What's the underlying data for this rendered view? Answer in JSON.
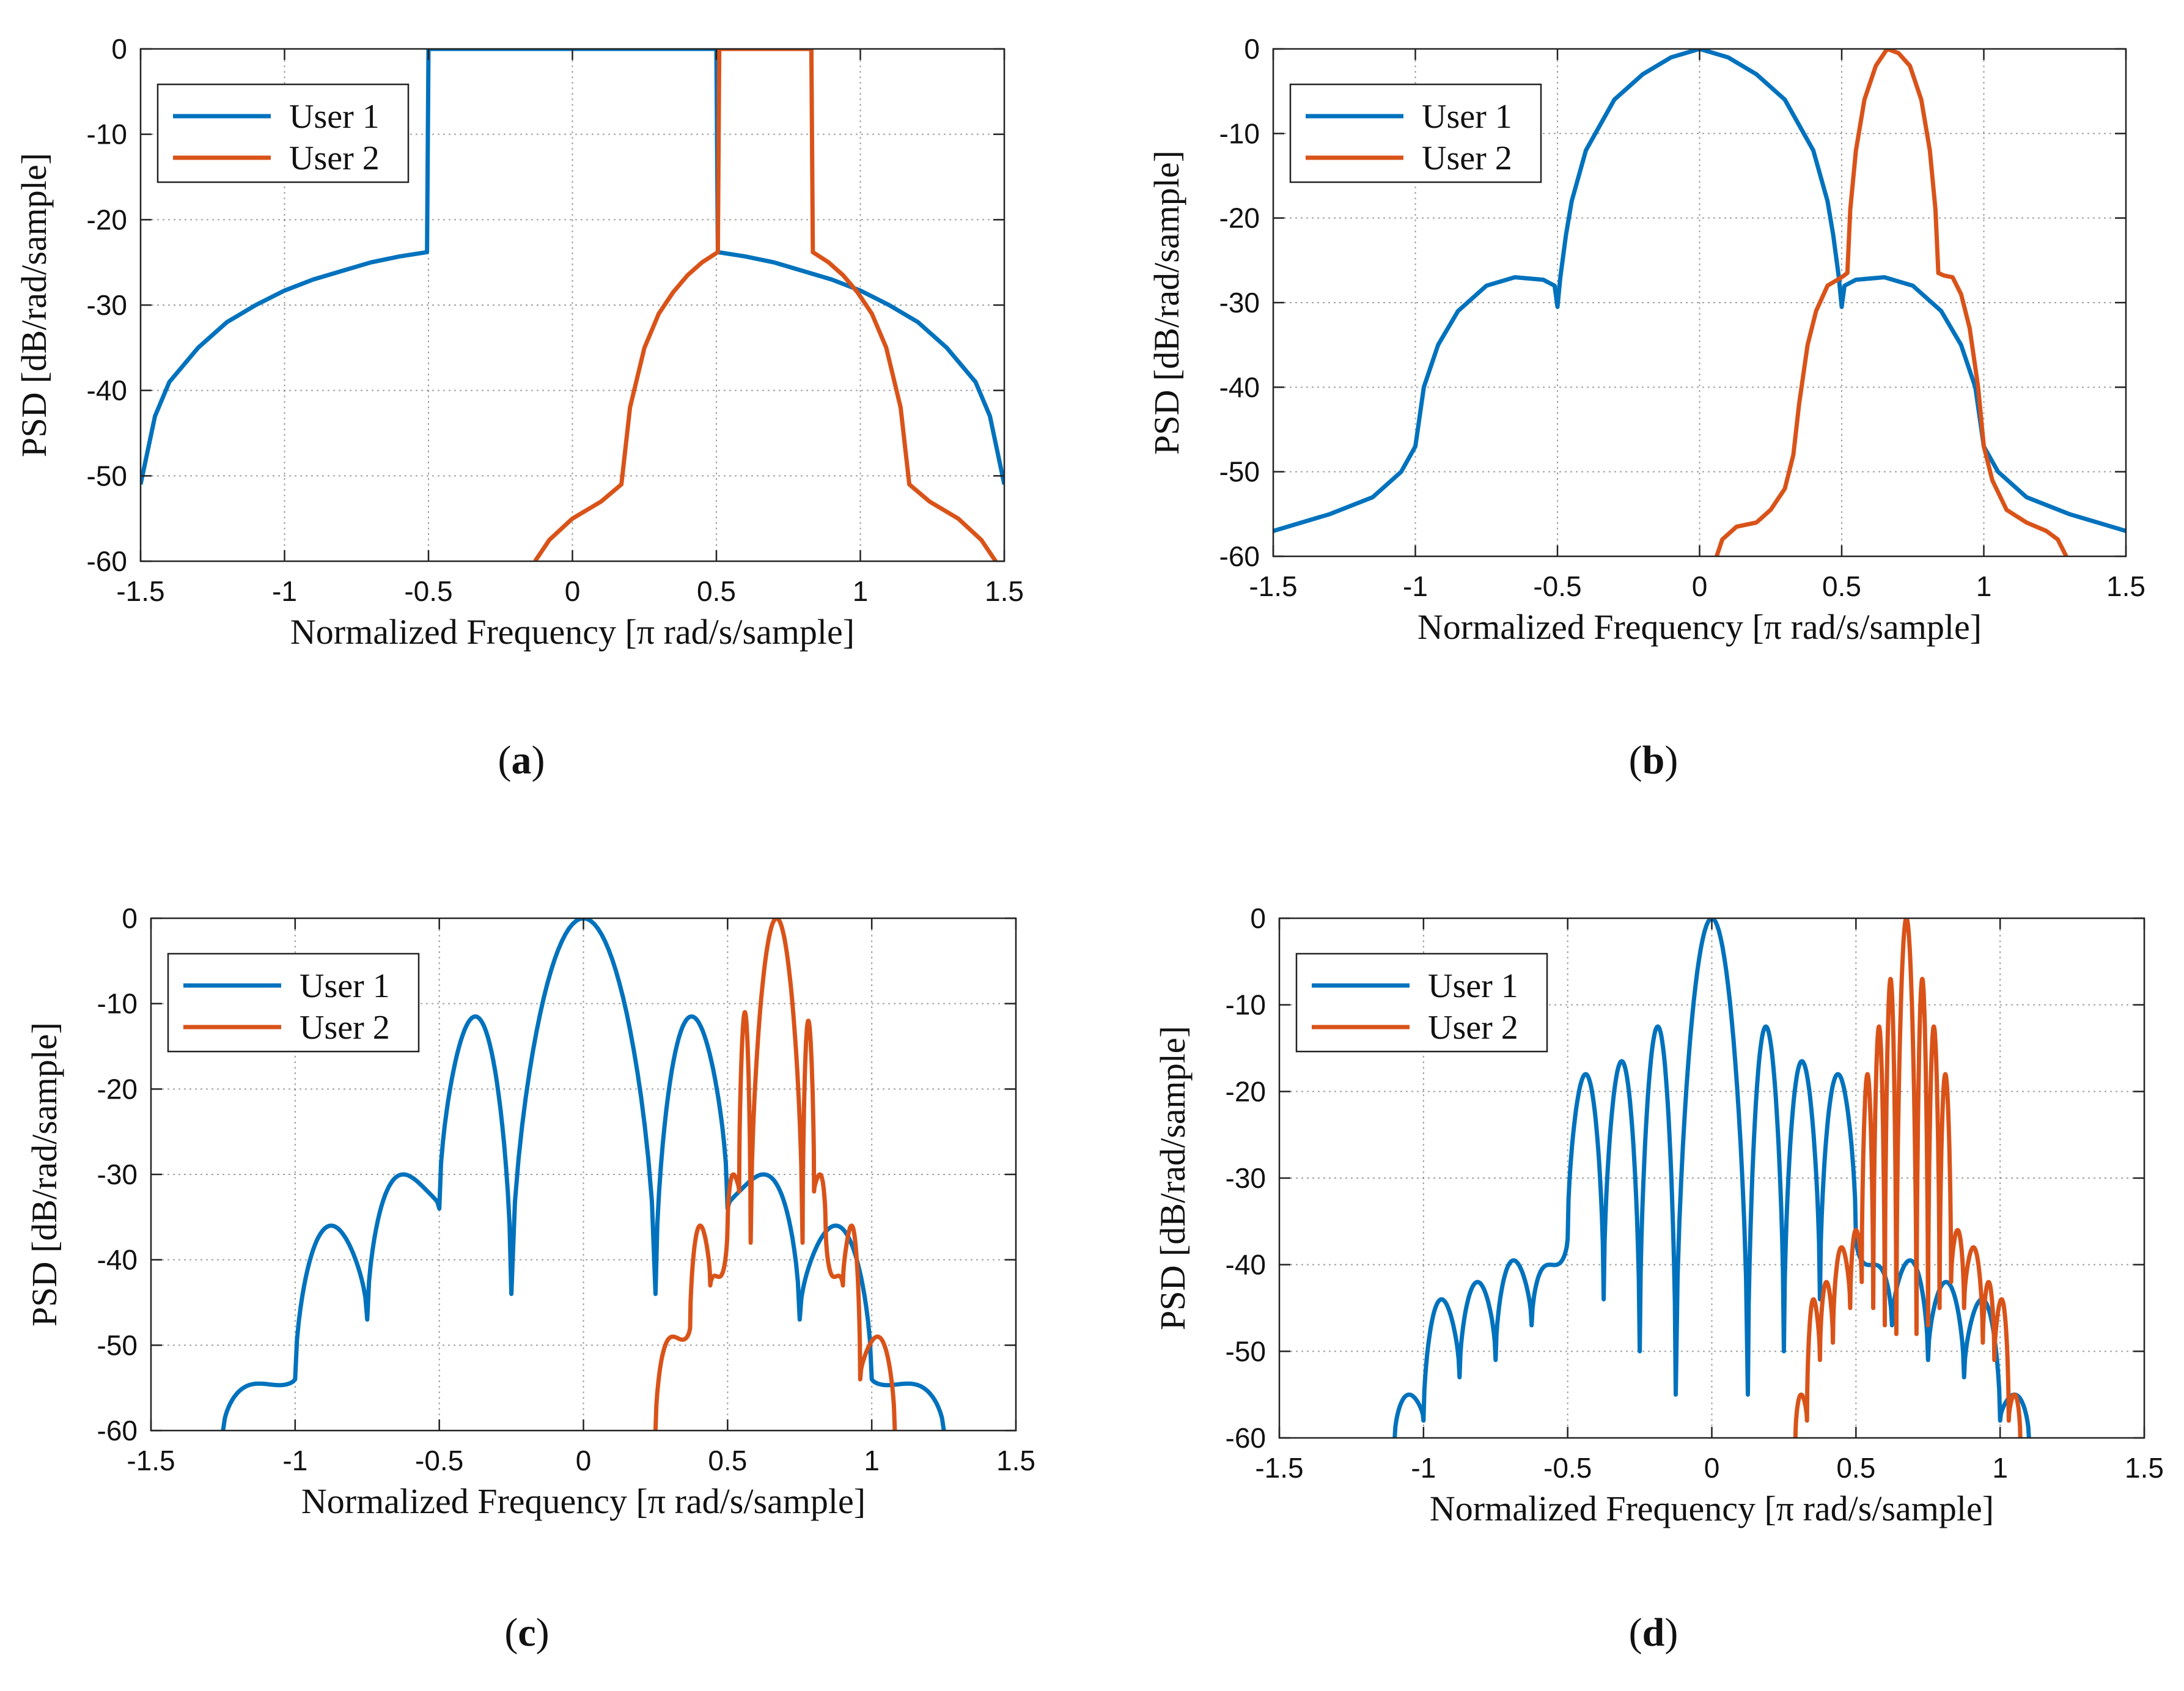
{
  "colors": {
    "user1": "#0072BD",
    "user2": "#D95319",
    "axis": "#222222",
    "grid": "#555555"
  },
  "common": {
    "xlabel": "Normalized Frequency [π rad/s/sample]",
    "ylabel": "PSD [dB/rad/sample]",
    "xticks": [
      "-1.5",
      "-1",
      "-0.5",
      "0",
      "0.5",
      "1",
      "1.5"
    ],
    "yticks": [
      "0",
      "-10",
      "-20",
      "-30",
      "-40",
      "-50",
      "-60"
    ]
  },
  "chart_data": [
    {
      "id": "a",
      "caption_letter": "a",
      "type": "line",
      "xlim": [
        -1.5,
        1.5
      ],
      "ylim": [
        -60,
        0
      ],
      "legend": [
        "User 1",
        "User 2"
      ],
      "legend_position": "top-left",
      "series": [
        {
          "name": "User 1",
          "points": [
            [
              -1.5,
              -51
            ],
            [
              -1.45,
              -43
            ],
            [
              -1.4,
              -39
            ],
            [
              -1.3,
              -35
            ],
            [
              -1.2,
              -32
            ],
            [
              -1.1,
              -30
            ],
            [
              -1.0,
              -28.3
            ],
            [
              -0.9,
              -27
            ],
            [
              -0.8,
              -26
            ],
            [
              -0.7,
              -25
            ],
            [
              -0.6,
              -24.3
            ],
            [
              -0.505,
              -23.8
            ],
            [
              -0.5,
              0
            ],
            [
              0,
              0
            ],
            [
              0.5,
              0
            ],
            [
              0.505,
              -23.8
            ],
            [
              0.6,
              -24.3
            ],
            [
              0.7,
              -25
            ],
            [
              0.8,
              -26
            ],
            [
              0.9,
              -27
            ],
            [
              1.0,
              -28.3
            ],
            [
              1.1,
              -30
            ],
            [
              1.2,
              -32
            ],
            [
              1.3,
              -35
            ],
            [
              1.4,
              -39
            ],
            [
              1.45,
              -43
            ],
            [
              1.5,
              -51
            ]
          ]
        },
        {
          "name": "User 2",
          "points": [
            [
              -0.13,
              -60
            ],
            [
              -0.08,
              -57.5
            ],
            [
              0,
              -55
            ],
            [
              0.1,
              -53
            ],
            [
              0.17,
              -51
            ],
            [
              0.2,
              -42
            ],
            [
              0.25,
              -35
            ],
            [
              0.3,
              -31
            ],
            [
              0.35,
              -28.5
            ],
            [
              0.4,
              -26.5
            ],
            [
              0.45,
              -25
            ],
            [
              0.505,
              -23.8
            ],
            [
              0.51,
              0
            ],
            [
              0.83,
              0
            ],
            [
              0.835,
              -23.8
            ],
            [
              0.89,
              -25
            ],
            [
              0.94,
              -26.5
            ],
            [
              0.99,
              -28.5
            ],
            [
              1.04,
              -31
            ],
            [
              1.09,
              -35
            ],
            [
              1.14,
              -42
            ],
            [
              1.17,
              -51
            ],
            [
              1.24,
              -53
            ],
            [
              1.34,
              -55
            ],
            [
              1.42,
              -57.5
            ],
            [
              1.47,
              -60
            ]
          ]
        }
      ]
    },
    {
      "id": "b",
      "caption_letter": "b",
      "type": "line",
      "xlim": [
        -1.5,
        1.5
      ],
      "ylim": [
        -60,
        0
      ],
      "legend": [
        "User 1",
        "User 2"
      ],
      "legend_position": "top-left",
      "series": [
        {
          "name": "User 1",
          "points": [
            [
              -1.5,
              -57
            ],
            [
              -1.3,
              -55
            ],
            [
              -1.15,
              -53
            ],
            [
              -1.05,
              -50
            ],
            [
              -1.0,
              -47
            ],
            [
              -0.97,
              -40
            ],
            [
              -0.92,
              -35
            ],
            [
              -0.85,
              -31
            ],
            [
              -0.75,
              -28
            ],
            [
              -0.65,
              -27
            ],
            [
              -0.55,
              -27.3
            ],
            [
              -0.51,
              -28
            ],
            [
              -0.5,
              -30.5
            ],
            [
              -0.49,
              -27
            ],
            [
              -0.47,
              -22
            ],
            [
              -0.45,
              -18
            ],
            [
              -0.4,
              -12
            ],
            [
              -0.3,
              -6
            ],
            [
              -0.2,
              -3
            ],
            [
              -0.1,
              -1
            ],
            [
              0,
              0
            ],
            [
              0.1,
              -1
            ],
            [
              0.2,
              -3
            ],
            [
              0.3,
              -6
            ],
            [
              0.4,
              -12
            ],
            [
              0.45,
              -18
            ],
            [
              0.47,
              -22
            ],
            [
              0.49,
              -27
            ],
            [
              0.5,
              -30.5
            ],
            [
              0.51,
              -28
            ],
            [
              0.55,
              -27.3
            ],
            [
              0.65,
              -27
            ],
            [
              0.75,
              -28
            ],
            [
              0.85,
              -31
            ],
            [
              0.92,
              -35
            ],
            [
              0.97,
              -40
            ],
            [
              1.0,
              -47
            ],
            [
              1.05,
              -50
            ],
            [
              1.15,
              -53
            ],
            [
              1.3,
              -55
            ],
            [
              1.5,
              -57
            ]
          ]
        },
        {
          "name": "User 2",
          "points": [
            [
              0.06,
              -60
            ],
            [
              0.08,
              -58
            ],
            [
              0.13,
              -56.5
            ],
            [
              0.2,
              -56
            ],
            [
              0.25,
              -54.5
            ],
            [
              0.3,
              -52
            ],
            [
              0.33,
              -48
            ],
            [
              0.35,
              -42
            ],
            [
              0.38,
              -35
            ],
            [
              0.41,
              -31
            ],
            [
              0.45,
              -28
            ],
            [
              0.5,
              -27
            ],
            [
              0.52,
              -26.5
            ],
            [
              0.53,
              -19
            ],
            [
              0.55,
              -12
            ],
            [
              0.58,
              -6
            ],
            [
              0.62,
              -2
            ],
            [
              0.66,
              0
            ],
            [
              0.7,
              -0.5
            ],
            [
              0.74,
              -2
            ],
            [
              0.78,
              -6
            ],
            [
              0.81,
              -12
            ],
            [
              0.83,
              -19
            ],
            [
              0.84,
              -26.5
            ],
            [
              0.86,
              -26.8
            ],
            [
              0.89,
              -27
            ],
            [
              0.92,
              -29
            ],
            [
              0.95,
              -33
            ],
            [
              0.98,
              -40
            ],
            [
              1.0,
              -47
            ],
            [
              1.03,
              -51
            ],
            [
              1.08,
              -54.5
            ],
            [
              1.15,
              -56
            ],
            [
              1.22,
              -57
            ],
            [
              1.26,
              -58
            ],
            [
              1.29,
              -60
            ]
          ]
        }
      ]
    },
    {
      "id": "c",
      "caption_letter": "c",
      "type": "line",
      "xlim": [
        -1.5,
        1.5
      ],
      "ylim": [
        -60,
        0
      ],
      "legend": [
        "User 1",
        "User 2"
      ],
      "legend_position": "top-left",
      "lobes": [
        {
          "series": "User 1",
          "nulls": [
            -1.25,
            -1.0,
            -0.75,
            -0.5,
            -0.25,
            0.25,
            0.5,
            0.75,
            1.0,
            1.25
          ],
          "peaks": [
            -57,
            -54.5,
            -36,
            -30,
            -11.5,
            0,
            -11.5,
            -30,
            -36,
            -54.5,
            -57
          ],
          "null_depth": [
            -60,
            -54,
            -47,
            -34,
            -44,
            -44,
            -34,
            -47,
            -54,
            -60
          ]
        },
        {
          "series": "User 2",
          "nulls": [
            0.25,
            0.37,
            0.44,
            0.5,
            0.54,
            0.58,
            0.76,
            0.8,
            0.84,
            0.9,
            0.96,
            1.08
          ],
          "peaks": [
            -60,
            -49,
            -36,
            -42,
            -30,
            -11,
            0,
            -12,
            -30,
            -42,
            -36,
            -49,
            -60
          ],
          "null_depth": [
            -60,
            -48,
            -43,
            -36,
            -32,
            -38,
            -38,
            -32,
            -36,
            -43,
            -54,
            -60
          ]
        }
      ]
    },
    {
      "id": "d",
      "caption_letter": "d",
      "type": "line",
      "xlim": [
        -1.5,
        1.5
      ],
      "ylim": [
        -60,
        0
      ],
      "legend": [
        "User 1",
        "User 2"
      ],
      "legend_position": "top-left",
      "lobes": [
        {
          "series": "User 1",
          "nulls": [
            -1.1,
            -1.0,
            -0.875,
            -0.75,
            -0.625,
            -0.5,
            -0.375,
            -0.25,
            -0.125,
            0.125,
            0.25,
            0.375,
            0.5,
            0.625,
            0.75,
            0.875,
            1.0,
            1.1
          ],
          "peaks": [
            -60,
            -55,
            -44,
            -42,
            -39.5,
            -40,
            -18,
            -16.5,
            -12.5,
            0,
            -12.5,
            -16.5,
            -18,
            -40,
            -39.5,
            -42,
            -44,
            -55,
            -60
          ],
          "null_depth": [
            -60,
            -58,
            -53,
            -51,
            -47,
            -37,
            -44,
            -50,
            -55,
            -55,
            -50,
            -44,
            -37,
            -47,
            -51,
            -53,
            -58,
            -60
          ]
        },
        {
          "series": "User 2",
          "nulls": [
            0.29,
            0.33,
            0.375,
            0.42,
            0.48,
            0.52,
            0.56,
            0.6,
            0.64,
            0.71,
            0.75,
            0.79,
            0.83,
            0.875,
            0.94,
            0.98,
            1.03,
            1.07
          ],
          "peaks": [
            -60,
            -55,
            -44,
            -42,
            -38,
            -36,
            -18,
            -12.5,
            -7,
            0,
            -7,
            -12.5,
            -18,
            -36,
            -38,
            -42,
            -44,
            -55,
            -60
          ],
          "null_depth": [
            -60,
            -58,
            -51,
            -49,
            -45,
            -42,
            -45,
            -47,
            -48,
            -48,
            -47,
            -45,
            -42,
            -45,
            -49,
            -51,
            -58,
            -60
          ]
        }
      ]
    }
  ]
}
